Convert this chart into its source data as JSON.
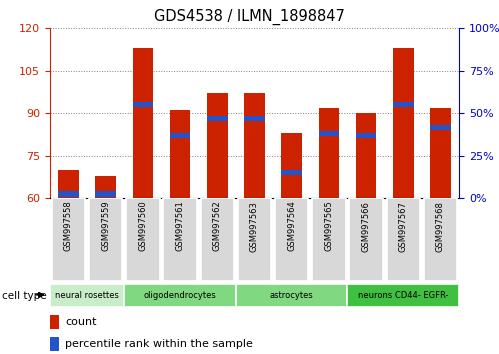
{
  "title": "GDS4538 / ILMN_1898847",
  "samples": [
    "GSM997558",
    "GSM997559",
    "GSM997560",
    "GSM997561",
    "GSM997562",
    "GSM997563",
    "GSM997564",
    "GSM997565",
    "GSM997566",
    "GSM997567",
    "GSM997568"
  ],
  "count_values": [
    70,
    68,
    113,
    91,
    97,
    97,
    83,
    92,
    90,
    113,
    92
  ],
  "percentile_values": [
    61.5,
    61.5,
    93,
    82,
    88,
    88,
    69,
    83,
    82,
    93,
    85
  ],
  "bar_bottom": 60,
  "ylim": [
    60,
    120
  ],
  "yticks_left": [
    60,
    75,
    90,
    105,
    120
  ],
  "yticks_right": [
    0,
    25,
    50,
    75,
    100
  ],
  "yticks_right_pos": [
    60,
    75,
    90,
    105,
    120
  ],
  "left_axis_color": "#cc2200",
  "right_axis_color": "#0000cc",
  "bar_color": "#cc2200",
  "percentile_color": "#2255cc",
  "group_boundaries": [
    {
      "start": 0,
      "end": 1,
      "label": "neural rosettes",
      "color": "#c8edc8"
    },
    {
      "start": 2,
      "end": 4,
      "label": "oligodendrocytes",
      "color": "#80d880"
    },
    {
      "start": 5,
      "end": 7,
      "label": "astrocytes",
      "color": "#80d880"
    },
    {
      "start": 8,
      "end": 10,
      "label": "neurons CD44- EGFR-",
      "color": "#40c040"
    }
  ]
}
